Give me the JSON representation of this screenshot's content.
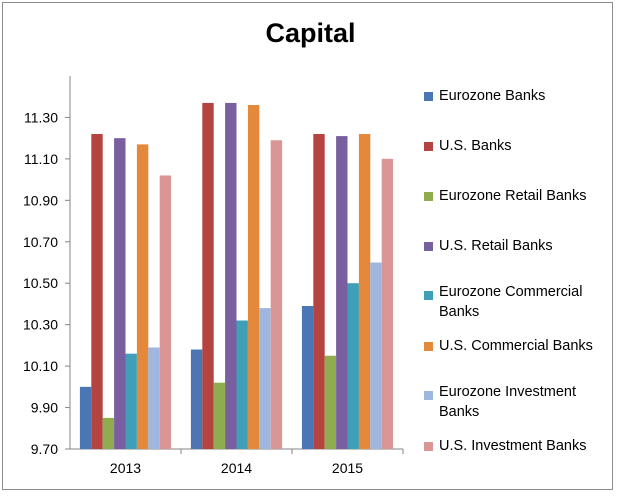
{
  "chart_data": {
    "type": "bar",
    "title": "Capital",
    "xlabel": "",
    "ylabel": "",
    "categories": [
      "2013",
      "2014",
      "2015"
    ],
    "ylim": [
      9.7,
      11.5
    ],
    "yticks": [
      "9.70",
      "9.90",
      "10.10",
      "10.30",
      "10.50",
      "10.70",
      "10.90",
      "11.10",
      "11.30"
    ],
    "grid": false,
    "legend_position": "right",
    "series": [
      {
        "name": "Eurozone Banks",
        "color": "#4a76b5",
        "values": [
          10.0,
          10.18,
          10.39
        ]
      },
      {
        "name": "U.S. Banks",
        "color": "#b5433f",
        "values": [
          11.22,
          11.37,
          11.22
        ]
      },
      {
        "name": "Eurozone Retail Banks",
        "color": "#8fad4e",
        "values": [
          9.85,
          10.02,
          10.15
        ]
      },
      {
        "name": "U.S. Retail Banks",
        "color": "#7a5fa0",
        "values": [
          11.2,
          11.37,
          11.21
        ]
      },
      {
        "name": "Eurozone Commercial Banks",
        "color": "#3f9fb9",
        "values": [
          10.16,
          10.32,
          10.5
        ]
      },
      {
        "name": "U.S. Commercial Banks",
        "color": "#e4893b",
        "values": [
          11.17,
          11.36,
          11.22
        ]
      },
      {
        "name": "Eurozone Investment Banks",
        "color": "#9fb6df",
        "values": [
          10.19,
          10.38,
          10.6
        ]
      },
      {
        "name": "U.S. Investment Banks",
        "color": "#d99694",
        "values": [
          11.02,
          11.19,
          11.1
        ]
      }
    ]
  }
}
